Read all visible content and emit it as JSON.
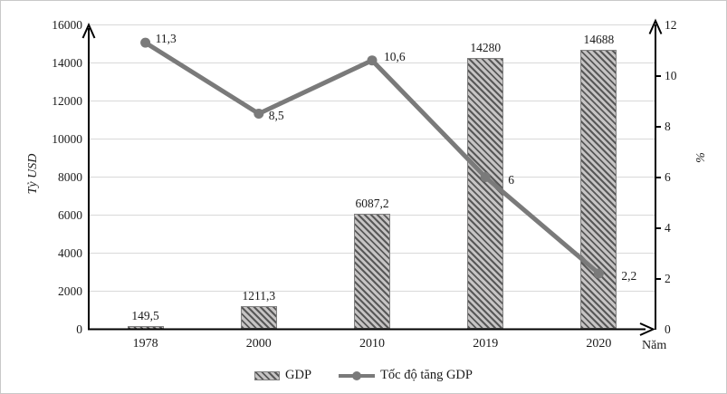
{
  "chart_data": {
    "type": "bar+line",
    "categories": [
      "1978",
      "2000",
      "2010",
      "2019",
      "2020"
    ],
    "series": [
      {
        "name": "GDP",
        "type": "bar",
        "axis": "left",
        "values": [
          149.5,
          1211.3,
          6087.2,
          14280,
          14688
        ],
        "point_labels": [
          "149,5",
          "1211,3",
          "6087,2",
          "14280",
          "14688"
        ]
      },
      {
        "name": "Tốc độ tăng GDP",
        "type": "line",
        "axis": "right",
        "values": [
          11.3,
          8.5,
          10.6,
          6,
          2.2
        ],
        "point_labels": [
          "11,3",
          "8,5",
          "10,6",
          "6",
          "2,2"
        ]
      }
    ],
    "left_axis": {
      "title": "Tỷ USD",
      "min": 0,
      "max": 16000,
      "step": 2000,
      "tick_labels": [
        "0",
        "2000",
        "4000",
        "6000",
        "8000",
        "10000",
        "12000",
        "14000",
        "16000"
      ]
    },
    "right_axis": {
      "title": "%",
      "min": 0,
      "max": 12,
      "step": 2,
      "tick_labels": [
        "0",
        "2",
        "4",
        "6",
        "8",
        "10",
        "12"
      ]
    },
    "x_axis": {
      "title": "Năm"
    },
    "grid": "horizontal gridlines on",
    "legend_position": "bottom"
  },
  "legend": {
    "items": [
      {
        "label": "GDP",
        "swatch": "hatched-bar"
      },
      {
        "label": "Tốc độ tăng GDP",
        "swatch": "line-with-marker"
      }
    ]
  },
  "colors": {
    "bar_base": "#c6c4c4",
    "bar_stripe": "#585858",
    "line": "#7a7a7a",
    "gridline": "#d9d9d9",
    "axis": "#000000",
    "text": "#1a1a1a"
  }
}
